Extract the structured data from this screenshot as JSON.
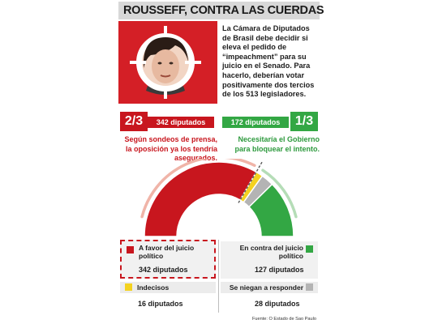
{
  "headline": "ROUSSEFF, CONTRA LAS CUERDAS",
  "intro_text": "La Cámara de Diputados de Brasil debe decidir si eleva el pedido de “impeachment” para su juicio en el Senado. Para hacerlo, deberían votar positivamente dos tercios de los 513 legisladores.",
  "photo": {
    "icon": "crosshair-portrait-icon"
  },
  "favor": {
    "fraction": "2/3",
    "count_label": "342 diputados",
    "note": "Según sondeos de prensa, la oposición ya los tendría asegurados.",
    "legend_label": "A favor del juicio político",
    "legend_value": "342 diputados",
    "color": "#c8161e"
  },
  "contra": {
    "fraction": "1/3",
    "count_label": "172 diputados",
    "note": "Necesitaría el Gobierno para bloquear el intento.",
    "legend_label": "En contra del juicio político",
    "legend_value": "127 diputados",
    "color": "#33a744"
  },
  "indecisos": {
    "legend_label": "Indecisos",
    "legend_value": "16 diputados",
    "color": "#f4d21f"
  },
  "niegan": {
    "legend_label": "Se niegan a responder",
    "legend_value": "28 diputados",
    "color": "#b4b4b4"
  },
  "source": "Fuente: O Estado de Sao Paulo",
  "chart_data": {
    "type": "pie",
    "shape": "half-donut",
    "total": 513,
    "categories": [
      "A favor del juicio político",
      "Indecisos",
      "Se niegan a responder",
      "En contra del juicio político"
    ],
    "values": [
      342,
      16,
      28,
      127
    ],
    "colors": [
      "#c8161e",
      "#f4d21f",
      "#b4b4b4",
      "#33a744"
    ],
    "threshold_fraction": "2/3"
  }
}
